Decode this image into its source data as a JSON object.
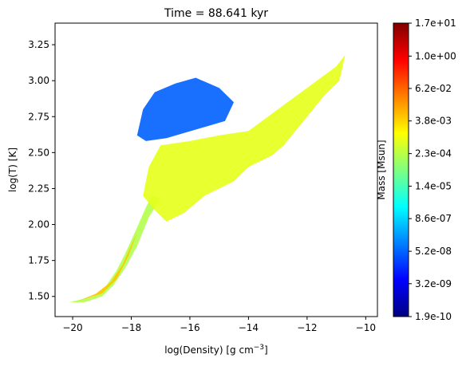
{
  "chart_data": {
    "type": "heatmap",
    "title": "Time = 88.641 kyr",
    "xlabel": "log(Density) [g cm",
    "xlabel_sup": "−3",
    "xlabel_end": "]",
    "ylabel": "log(T) [K]",
    "xlim": [
      -20.6,
      -9.6
    ],
    "ylim": [
      1.36,
      3.4
    ],
    "x_ticks": [
      -20,
      -18,
      -16,
      -14,
      -12,
      -10
    ],
    "x_tick_labels": [
      "−20",
      "−18",
      "−16",
      "−14",
      "−12",
      "−10"
    ],
    "y_ticks": [
      1.5,
      1.75,
      2.0,
      2.25,
      2.5,
      2.75,
      3.0,
      3.25
    ],
    "y_tick_labels": [
      "1.50",
      "1.75",
      "2.00",
      "2.25",
      "2.50",
      "2.75",
      "3.00",
      "3.25"
    ],
    "colorbar": {
      "label": "Mass [Msun]",
      "colormap": "jet",
      "scale": "log",
      "range": [
        1.9e-10,
        17.0
      ],
      "tick_labels": [
        "1.9e-10",
        "3.2e-09",
        "5.2e-08",
        "8.6e-07",
        "1.4e-05",
        "2.3e-04",
        "3.8e-03",
        "6.2e-02",
        "1.0e+00",
        "1.7e+01"
      ]
    },
    "colors": {
      "jet_stops": [
        "#000080",
        "#0000ff",
        "#0080ff",
        "#00ffff",
        "#80ff80",
        "#ffff00",
        "#ff8000",
        "#ff0000",
        "#800000"
      ]
    },
    "regions": [
      {
        "desc": "cold dense track",
        "points": [
          [
            -20.1,
            1.46
          ],
          [
            -19.3,
            1.5
          ],
          [
            -18.9,
            1.56
          ],
          [
            -18.5,
            1.68
          ],
          [
            -18.2,
            1.8
          ],
          [
            -17.8,
            1.98
          ],
          [
            -17.5,
            2.12
          ],
          [
            -17.3,
            2.2
          ],
          [
            -17.0,
            2.18
          ],
          [
            -17.4,
            2.05
          ],
          [
            -17.8,
            1.85
          ],
          [
            -18.2,
            1.7
          ],
          [
            -18.6,
            1.58
          ],
          [
            -19.0,
            1.5
          ],
          [
            -19.6,
            1.46
          ]
        ],
        "level": 0.55
      },
      {
        "desc": "core track",
        "points": [
          [
            -19.8,
            1.47
          ],
          [
            -19.0,
            1.52
          ],
          [
            -18.5,
            1.62
          ],
          [
            -18.1,
            1.78
          ],
          [
            -17.8,
            1.94
          ],
          [
            -17.9,
            1.9
          ],
          [
            -18.3,
            1.72
          ],
          [
            -18.7,
            1.6
          ],
          [
            -19.2,
            1.52
          ]
        ],
        "level": 0.68
      },
      {
        "desc": "warm plume",
        "points": [
          [
            -17.6,
            2.2
          ],
          [
            -17.4,
            2.4
          ],
          [
            -17.0,
            2.55
          ],
          [
            -16.0,
            2.58
          ],
          [
            -15.0,
            2.62
          ],
          [
            -14.0,
            2.65
          ],
          [
            -13.0,
            2.8
          ],
          [
            -12.0,
            2.95
          ],
          [
            -11.0,
            3.1
          ],
          [
            -10.7,
            3.18
          ],
          [
            -10.9,
            3.0
          ],
          [
            -11.4,
            2.9
          ],
          [
            -12.0,
            2.75
          ],
          [
            -12.8,
            2.55
          ],
          [
            -13.2,
            2.48
          ],
          [
            -14.0,
            2.4
          ],
          [
            -14.5,
            2.3
          ],
          [
            -15.5,
            2.2
          ],
          [
            -16.2,
            2.08
          ],
          [
            -16.8,
            2.02
          ],
          [
            -17.2,
            2.1
          ]
        ],
        "level": 0.6
      },
      {
        "desc": "hot diffuse gas",
        "points": [
          [
            -17.8,
            2.62
          ],
          [
            -17.6,
            2.8
          ],
          [
            -17.2,
            2.92
          ],
          [
            -16.5,
            2.98
          ],
          [
            -15.8,
            3.02
          ],
          [
            -15.0,
            2.95
          ],
          [
            -14.5,
            2.85
          ],
          [
            -14.8,
            2.72
          ],
          [
            -15.8,
            2.66
          ],
          [
            -16.8,
            2.6
          ],
          [
            -17.5,
            2.58
          ]
        ],
        "level": 0.22
      }
    ]
  }
}
